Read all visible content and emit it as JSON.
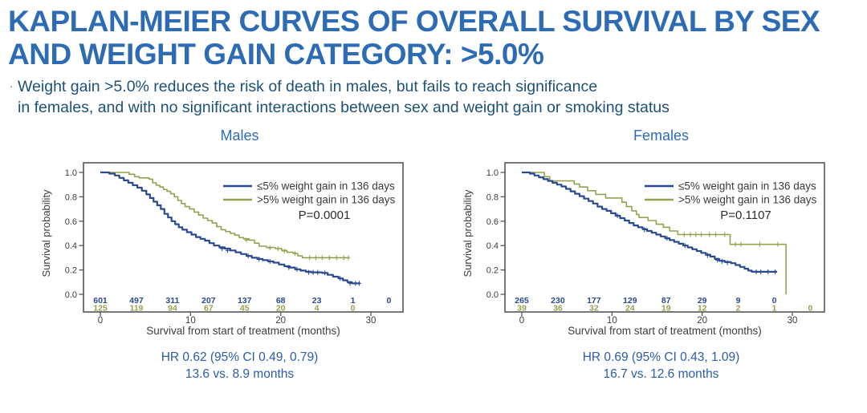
{
  "slide": {
    "title_lines": [
      "KAPLAN-MEIER CURVES OF OVERALL SURVIVAL BY SEX",
      "AND WEIGHT GAIN CATEGORY:  >5.0%"
    ],
    "bullet_marker": "·",
    "bullet_lines": [
      "Weight gain >5.0% reduces the risk of death in males, but fails to reach significance",
      "in females, and with no significant interactions between sex and weight gain or smoking status"
    ]
  },
  "colors": {
    "title": "#2d6cb5",
    "bullet_text": "#1d5177",
    "chart_title": "#2d6cb5",
    "hr_text": "#2b5ca9",
    "series_le5": "#2a4a8f",
    "series_gt5": "#97a04f",
    "axis_text": "#3d3d3f",
    "plot_border": "#54565a",
    "p_text": "#2b2b2b"
  },
  "chart_data": [
    {
      "type": "line",
      "subtype": "kaplan-meier-step",
      "title": "Males",
      "xlabel": "Survival from start of treatment (months)",
      "ylabel": "Survival probability",
      "xlim": [
        0,
        33.5
      ],
      "ylim": [
        0,
        1
      ],
      "xticks": [
        0,
        10,
        20,
        30
      ],
      "yticks": [
        "0.0",
        "0.2",
        "0.4",
        "0.6",
        "0.8",
        "1.0"
      ],
      "grid": false,
      "legend_position": "top-right-inside",
      "p_value": "P=0.0001",
      "hr_line1": "HR 0.62 (95% CI 0.49, 0.79)",
      "hr_line2": "13.6 vs. 8.9 months",
      "series": [
        {
          "name": "≤5% weight gain in 136 days",
          "color": "#2a4a8f",
          "stroke_width": 2.2,
          "points": [
            [
              0,
              1.0
            ],
            [
              1.0,
              0.99
            ],
            [
              1.6,
              0.975
            ],
            [
              2.1,
              0.955
            ],
            [
              2.6,
              0.935
            ],
            [
              3.1,
              0.915
            ],
            [
              3.6,
              0.895
            ],
            [
              4.1,
              0.875
            ],
            [
              4.6,
              0.85
            ],
            [
              5.1,
              0.82
            ],
            [
              5.5,
              0.79
            ],
            [
              5.9,
              0.76
            ],
            [
              6.3,
              0.73
            ],
            [
              6.7,
              0.7
            ],
            [
              7.1,
              0.66
            ],
            [
              7.5,
              0.63
            ],
            [
              7.9,
              0.6
            ],
            [
              8.3,
              0.575
            ],
            [
              8.7,
              0.55
            ],
            [
              9.1,
              0.53
            ],
            [
              9.6,
              0.51
            ],
            [
              10.1,
              0.49
            ],
            [
              10.6,
              0.47
            ],
            [
              11.1,
              0.455
            ],
            [
              11.6,
              0.44
            ],
            [
              12.1,
              0.42
            ],
            [
              12.6,
              0.4
            ],
            [
              13.2,
              0.385
            ],
            [
              13.8,
              0.375
            ],
            [
              14.4,
              0.36
            ],
            [
              15.0,
              0.345
            ],
            [
              15.6,
              0.33
            ],
            [
              16.2,
              0.315
            ],
            [
              16.8,
              0.3
            ],
            [
              17.4,
              0.29
            ],
            [
              18.0,
              0.28
            ],
            [
              18.6,
              0.27
            ],
            [
              19.2,
              0.26
            ],
            [
              19.8,
              0.245
            ],
            [
              20.4,
              0.23
            ],
            [
              21.0,
              0.22
            ],
            [
              21.6,
              0.205
            ],
            [
              22.2,
              0.195
            ],
            [
              22.8,
              0.185
            ],
            [
              23.4,
              0.18
            ],
            [
              24.6,
              0.175
            ],
            [
              25.2,
              0.16
            ],
            [
              25.8,
              0.145
            ],
            [
              26.4,
              0.13
            ],
            [
              26.9,
              0.115
            ],
            [
              27.4,
              0.1
            ],
            [
              27.9,
              0.09
            ],
            [
              28.8,
              0.09
            ]
          ],
          "censors": [
            [
              13.5,
              0.375
            ],
            [
              14.1,
              0.36
            ],
            [
              16.4,
              0.315
            ],
            [
              17.6,
              0.29
            ],
            [
              18.8,
              0.27
            ],
            [
              20.9,
              0.22
            ],
            [
              21.8,
              0.205
            ],
            [
              23.1,
              0.18
            ],
            [
              23.6,
              0.18
            ],
            [
              24.1,
              0.18
            ],
            [
              24.9,
              0.175
            ],
            [
              26.6,
              0.13
            ],
            [
              27.7,
              0.09
            ],
            [
              28.3,
              0.09
            ],
            [
              28.7,
              0.09
            ]
          ]
        },
        {
          "name": ">5% weight gain in 136 days",
          "color": "#97a04f",
          "stroke_width": 1.6,
          "points": [
            [
              0,
              1.0
            ],
            [
              2.9,
              1.0
            ],
            [
              3.2,
              0.985
            ],
            [
              3.8,
              0.965
            ],
            [
              4.3,
              0.955
            ],
            [
              5.4,
              0.945
            ],
            [
              5.8,
              0.915
            ],
            [
              6.2,
              0.895
            ],
            [
              6.6,
              0.88
            ],
            [
              7.0,
              0.86
            ],
            [
              7.4,
              0.845
            ],
            [
              7.8,
              0.825
            ],
            [
              8.2,
              0.8
            ],
            [
              8.6,
              0.77
            ],
            [
              9.0,
              0.745
            ],
            [
              9.4,
              0.72
            ],
            [
              9.9,
              0.7
            ],
            [
              10.4,
              0.675
            ],
            [
              10.9,
              0.65
            ],
            [
              11.4,
              0.625
            ],
            [
              11.9,
              0.605
            ],
            [
              12.4,
              0.585
            ],
            [
              12.9,
              0.555
            ],
            [
              13.4,
              0.53
            ],
            [
              13.9,
              0.515
            ],
            [
              14.4,
              0.5
            ],
            [
              14.9,
              0.485
            ],
            [
              15.4,
              0.465
            ],
            [
              15.9,
              0.455
            ],
            [
              16.5,
              0.445
            ],
            [
              17.1,
              0.42
            ],
            [
              17.6,
              0.395
            ],
            [
              18.4,
              0.385
            ],
            [
              19.4,
              0.375
            ],
            [
              20.1,
              0.36
            ],
            [
              20.7,
              0.345
            ],
            [
              21.4,
              0.335
            ],
            [
              21.9,
              0.315
            ],
            [
              22.4,
              0.3
            ],
            [
              27.6,
              0.3
            ]
          ],
          "censors": [
            [
              16.2,
              0.445
            ],
            [
              18.8,
              0.38
            ],
            [
              19.7,
              0.375
            ],
            [
              20.4,
              0.355
            ],
            [
              21.6,
              0.335
            ],
            [
              23.2,
              0.3
            ],
            [
              23.9,
              0.3
            ],
            [
              24.6,
              0.3
            ],
            [
              25.4,
              0.3
            ],
            [
              26.2,
              0.3
            ],
            [
              27.0,
              0.3
            ],
            [
              27.5,
              0.3
            ]
          ]
        }
      ],
      "at_risk": {
        "times": [
          0,
          4,
          8,
          12,
          16,
          20,
          24,
          28,
          32
        ],
        "rows": [
          {
            "series": "≤5% weight gain in 136 days",
            "color": "#2a4a8f",
            "values": [
              "601",
              "497",
              "311",
              "207",
              "137",
              "68",
              "23",
              "1",
              "0"
            ]
          },
          {
            "series": ">5% weight gain in 136 days",
            "color": "#97a04f",
            "values": [
              "125",
              "119",
              "94",
              "67",
              "45",
              "20",
              "4",
              "0",
              ""
            ]
          }
        ]
      }
    },
    {
      "type": "line",
      "subtype": "kaplan-meier-step",
      "title": "Females",
      "xlabel": "Survival from start of treatment (months)",
      "ylabel": "Survival probability",
      "xlim": [
        0,
        33.5
      ],
      "ylim": [
        0,
        1
      ],
      "xticks": [
        0,
        10,
        20,
        30
      ],
      "yticks": [
        "0.0",
        "0.2",
        "0.4",
        "0.6",
        "0.8",
        "1.0"
      ],
      "grid": false,
      "legend_position": "top-right-inside",
      "p_value": "P=0.1107",
      "hr_line1": "HR 0.69 (95% CI 0.43, 1.09)",
      "hr_line2": "16.7 vs. 12.6 months",
      "series": [
        {
          "name": "≤5% weight gain in 136 days",
          "color": "#2a4a8f",
          "stroke_width": 2.2,
          "points": [
            [
              0,
              1.0
            ],
            [
              0.9,
              0.99
            ],
            [
              1.4,
              0.975
            ],
            [
              1.9,
              0.96
            ],
            [
              2.4,
              0.945
            ],
            [
              2.9,
              0.93
            ],
            [
              3.4,
              0.915
            ],
            [
              3.9,
              0.9
            ],
            [
              4.4,
              0.885
            ],
            [
              4.9,
              0.865
            ],
            [
              5.4,
              0.845
            ],
            [
              5.9,
              0.825
            ],
            [
              6.4,
              0.805
            ],
            [
              6.9,
              0.785
            ],
            [
              7.4,
              0.765
            ],
            [
              7.9,
              0.745
            ],
            [
              8.4,
              0.72
            ],
            [
              8.9,
              0.7
            ],
            [
              9.4,
              0.685
            ],
            [
              9.9,
              0.665
            ],
            [
              10.4,
              0.645
            ],
            [
              10.9,
              0.625
            ],
            [
              11.4,
              0.605
            ],
            [
              11.9,
              0.585
            ],
            [
              12.4,
              0.565
            ],
            [
              12.9,
              0.55
            ],
            [
              13.4,
              0.535
            ],
            [
              13.9,
              0.52
            ],
            [
              14.4,
              0.505
            ],
            [
              14.9,
              0.49
            ],
            [
              15.4,
              0.475
            ],
            [
              15.9,
              0.46
            ],
            [
              16.4,
              0.445
            ],
            [
              16.9,
              0.43
            ],
            [
              17.4,
              0.415
            ],
            [
              17.9,
              0.4
            ],
            [
              18.4,
              0.385
            ],
            [
              18.9,
              0.37
            ],
            [
              19.4,
              0.355
            ],
            [
              19.9,
              0.34
            ],
            [
              20.4,
              0.325
            ],
            [
              20.9,
              0.31
            ],
            [
              21.4,
              0.29
            ],
            [
              21.9,
              0.275
            ],
            [
              22.5,
              0.265
            ],
            [
              23.2,
              0.255
            ],
            [
              23.7,
              0.24
            ],
            [
              24.2,
              0.225
            ],
            [
              24.7,
              0.21
            ],
            [
              25.1,
              0.195
            ],
            [
              25.5,
              0.185
            ],
            [
              28.3,
              0.185
            ]
          ],
          "censors": [
            [
              10.6,
              0.645
            ],
            [
              13.6,
              0.53
            ],
            [
              16.1,
              0.46
            ],
            [
              18.1,
              0.4
            ],
            [
              20.6,
              0.32
            ],
            [
              21.7,
              0.28
            ],
            [
              22.2,
              0.27
            ],
            [
              22.8,
              0.26
            ],
            [
              26.0,
              0.185
            ],
            [
              26.5,
              0.185
            ],
            [
              27.3,
              0.185
            ],
            [
              28.1,
              0.185
            ]
          ]
        },
        {
          "name": ">5% weight gain in 136 days",
          "color": "#97a04f",
          "stroke_width": 1.6,
          "points": [
            [
              0,
              1.0
            ],
            [
              2.1,
              1.0
            ],
            [
              2.5,
              0.965
            ],
            [
              3.1,
              0.93
            ],
            [
              5.6,
              0.93
            ],
            [
              5.8,
              0.905
            ],
            [
              6.4,
              0.88
            ],
            [
              7.3,
              0.85
            ],
            [
              8.2,
              0.82
            ],
            [
              9.3,
              0.79
            ],
            [
              11.1,
              0.755
            ],
            [
              11.6,
              0.72
            ],
            [
              12.2,
              0.685
            ],
            [
              12.7,
              0.655
            ],
            [
              13.0,
              0.63
            ],
            [
              14.0,
              0.605
            ],
            [
              14.9,
              0.575
            ],
            [
              15.7,
              0.55
            ],
            [
              16.4,
              0.52
            ],
            [
              17.3,
              0.49
            ],
            [
              23.1,
              0.41
            ],
            [
              29.3,
              0.0
            ]
          ],
          "censors": [
            [
              18.0,
              0.49
            ],
            [
              18.7,
              0.49
            ],
            [
              19.3,
              0.49
            ],
            [
              19.9,
              0.49
            ],
            [
              20.8,
              0.49
            ],
            [
              21.5,
              0.49
            ],
            [
              22.5,
              0.49
            ],
            [
              23.7,
              0.41
            ],
            [
              24.3,
              0.41
            ],
            [
              26.4,
              0.41
            ],
            [
              28.4,
              0.41
            ]
          ]
        }
      ],
      "at_risk": {
        "times": [
          0,
          4,
          8,
          12,
          16,
          20,
          24,
          28,
          32
        ],
        "rows": [
          {
            "series": "≤5% weight gain in 136 days",
            "color": "#2a4a8f",
            "values": [
              "265",
              "230",
              "177",
              "129",
              "87",
              "29",
              "9",
              "0",
              ""
            ]
          },
          {
            "series": ">5% weight gain in 136 days",
            "color": "#97a04f",
            "values": [
              "39",
              "36",
              "32",
              "24",
              "19",
              "12",
              "2",
              "1",
              "0"
            ]
          }
        ]
      }
    }
  ]
}
